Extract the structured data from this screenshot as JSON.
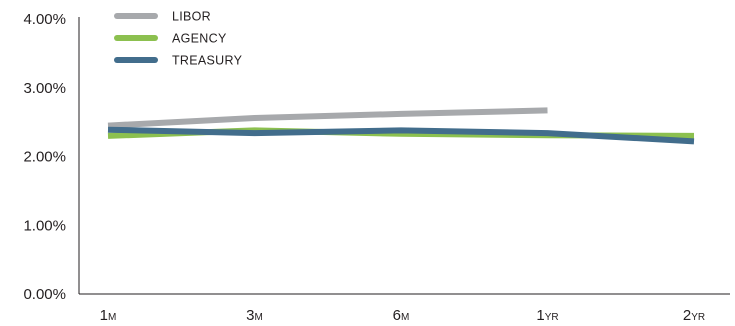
{
  "chart_data": {
    "type": "line",
    "categories": [
      {
        "main": "1",
        "sub": "M"
      },
      {
        "main": "3",
        "sub": "M"
      },
      {
        "main": "6",
        "sub": "M"
      },
      {
        "main": "1",
        "sub": "YR"
      },
      {
        "main": "2",
        "sub": "YR"
      }
    ],
    "y_ticks": [
      "0.00%",
      "1.00%",
      "2.00%",
      "3.00%",
      "4.00%"
    ],
    "ylim": [
      0,
      4
    ],
    "series": [
      {
        "name": "LIBOR",
        "color": "#a7a9ac",
        "values": [
          2.45,
          2.56,
          2.62,
          2.67,
          null
        ]
      },
      {
        "name": "AGENCY",
        "color": "#8cc04f",
        "values": [
          2.3,
          2.38,
          2.33,
          2.31,
          2.3
        ]
      },
      {
        "name": "TREASURY",
        "color": "#426d8c",
        "values": [
          2.39,
          2.34,
          2.38,
          2.34,
          2.22
        ]
      }
    ],
    "grid": false,
    "legend": "top-left"
  }
}
